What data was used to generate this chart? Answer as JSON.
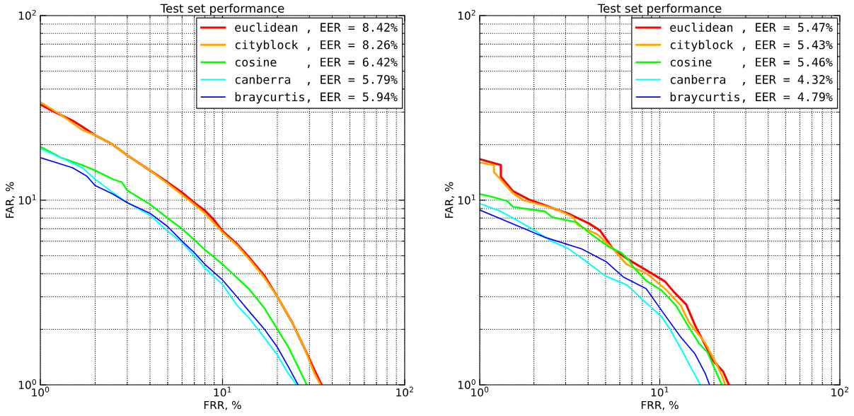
{
  "chart_data": [
    {
      "type": "line",
      "title": "Test set performance",
      "xlabel": "FRR, %",
      "ylabel": "FAR, %",
      "log": "xy",
      "grid": true,
      "legend": "top right",
      "xlim": [
        1,
        100
      ],
      "ylim": [
        1,
        100
      ],
      "xticks": [
        {
          "value": 1,
          "label": "10$^{0}$"
        },
        {
          "value": 10,
          "label": "10$^{1}$"
        },
        {
          "value": 100,
          "label": "10$^{2}$"
        }
      ],
      "yticks": [
        {
          "value": 1,
          "label": "10$^{0}$"
        },
        {
          "value": 10,
          "label": "10$^{1}$"
        },
        {
          "value": 100,
          "label": "10$^{2}$"
        }
      ],
      "series": [
        {
          "name": "euclidean , EER = 8.42%",
          "color": "#ff0000",
          "x": [
            1,
            1.2,
            1.5,
            1.7,
            2,
            2.5,
            3,
            4,
            5,
            6,
            7,
            8,
            9,
            10,
            12,
            14,
            17,
            20,
            24,
            28,
            32,
            35
          ],
          "values": [
            33,
            30,
            27,
            25,
            22.5,
            20,
            17.5,
            14.5,
            12.5,
            11,
            9.7,
            8.8,
            7.8,
            6.8,
            5.8,
            4.9,
            3.9,
            3.0,
            2.2,
            1.6,
            1.2,
            1.0
          ]
        },
        {
          "name": "cityblock , EER = 8.26%",
          "color": "#ffa500",
          "x": [
            1,
            1.3,
            1.7,
            2,
            2.5,
            3,
            4,
            5,
            6,
            7,
            8,
            10,
            12,
            14,
            17,
            20,
            24,
            28,
            32,
            34.5
          ],
          "values": [
            34,
            29,
            24,
            22.5,
            20,
            17.5,
            14.5,
            12.3,
            10.7,
            9.5,
            8.5,
            6.7,
            5.7,
            4.8,
            3.8,
            3.0,
            2.2,
            1.6,
            1.15,
            1.0
          ]
        },
        {
          "name": "cosine    , EER = 6.42%",
          "color": "#00ff00",
          "x": [
            1,
            1.3,
            1.7,
            2,
            2.5,
            2.8,
            3,
            4,
            5,
            6,
            7,
            8,
            10,
            12,
            14,
            17,
            20,
            23,
            26,
            29
          ],
          "values": [
            19.5,
            17,
            15.5,
            14.5,
            13,
            12.5,
            11.3,
            9.5,
            8,
            7,
            6.1,
            5.4,
            4.5,
            3.8,
            3.3,
            2.6,
            2.0,
            1.6,
            1.25,
            1.0
          ]
        },
        {
          "name": "canberra  , EER = 5.79%",
          "color": "#00ffff",
          "x": [
            1,
            1.3,
            1.7,
            2,
            2.5,
            3,
            4,
            5,
            6,
            7,
            8,
            10,
            12,
            14,
            17,
            20,
            23,
            25.5
          ],
          "values": [
            19,
            17,
            15,
            13,
            11,
            9.7,
            8.3,
            6.8,
            5.9,
            5,
            4.3,
            3.5,
            2.7,
            2.3,
            1.8,
            1.45,
            1.15,
            1.0
          ]
        },
        {
          "name": "braycurtis, EER = 5.94%",
          "color": "#0000ff",
          "x": [
            1,
            1.5,
            1.8,
            2,
            2.5,
            3,
            4,
            5,
            6,
            7,
            8,
            10,
            12,
            14,
            17,
            20,
            23,
            26
          ],
          "values": [
            17,
            15,
            13.5,
            12,
            10.8,
            9.7,
            8.5,
            7.2,
            6.0,
            5.2,
            4.5,
            3.7,
            3.0,
            2.5,
            2.0,
            1.6,
            1.25,
            1.0
          ]
        }
      ]
    },
    {
      "type": "line",
      "title": "Test set performance",
      "xlabel": "FRR, %",
      "ylabel": "FAR, %",
      "log": "xy",
      "grid": true,
      "legend": "top right",
      "xlim": [
        1,
        100
      ],
      "ylim": [
        1,
        100
      ],
      "xticks": [
        {
          "value": 1,
          "label": "10$^{0}$"
        },
        {
          "value": 10,
          "label": "10$^{1}$"
        },
        {
          "value": 100,
          "label": "10$^{2}$"
        }
      ],
      "yticks": [
        {
          "value": 1,
          "label": "10$^{0}$"
        },
        {
          "value": 10,
          "label": "10$^{1}$"
        },
        {
          "value": 100,
          "label": "10$^{2}$"
        }
      ],
      "series": [
        {
          "name": "euclidean , EER = 5.47%",
          "color": "#ff0000",
          "x": [
            1,
            1.31,
            1.31,
            1.53,
            1.87,
            3.16,
            4.03,
            4.66,
            5.5,
            6.7,
            8.8,
            10.7,
            12.0,
            14.0,
            15.7,
            17.9,
            19.8,
            22.5,
            24.2
          ],
          "values": [
            16.7,
            15.5,
            13.4,
            11.2,
            10.1,
            8.4,
            7.5,
            6.85,
            5.45,
            4.77,
            4.07,
            3.63,
            3.18,
            2.73,
            2.1,
            1.64,
            1.35,
            1.18,
            1.0
          ]
        },
        {
          "name": "cityblock , EER = 5.43%",
          "color": "#ffa500",
          "x": [
            1,
            1.2,
            1.2,
            1.53,
            1.75,
            2.63,
            3.3,
            3.5,
            4.53,
            5.5,
            6.5,
            7.1,
            8.5,
            10.9,
            13.1,
            14.5,
            17.9,
            20.2,
            22.1,
            23.1
          ],
          "values": [
            16.0,
            15.5,
            14.2,
            10.9,
            10.0,
            9.0,
            8.1,
            7.35,
            6.5,
            5.45,
            4.52,
            4.33,
            4.0,
            3.26,
            2.69,
            2.19,
            1.68,
            1.35,
            1.13,
            1.0
          ]
        },
        {
          "name": "cosine    , EER = 5.46%",
          "color": "#00ff00",
          "x": [
            1,
            1.19,
            1.42,
            1.53,
            2.3,
            2.52,
            3.45,
            4.03,
            4.66,
            5.2,
            6.1,
            6.7,
            7.1,
            8.5,
            10.2,
            12.3,
            14.3,
            16.5,
            18.4,
            20.5,
            22.1
          ],
          "values": [
            10.8,
            10.4,
            9.9,
            9.2,
            8.7,
            8.1,
            7.6,
            6.7,
            6.05,
            5.6,
            5.2,
            4.77,
            4.37,
            3.63,
            3.26,
            2.69,
            2.1,
            1.68,
            1.5,
            1.18,
            1.0
          ]
        },
        {
          "name": "canberra  , EER = 4.32%",
          "color": "#00ffff",
          "x": [
            1,
            1.31,
            1.57,
            1.95,
            2.47,
            3.07,
            3.78,
            4.96,
            6.6,
            8.0,
            10.2,
            11.5,
            13.4,
            15.1,
            16.8
          ],
          "values": [
            9.6,
            8.7,
            7.9,
            7.0,
            6.05,
            5.5,
            4.77,
            3.9,
            3.47,
            2.9,
            2.35,
            1.97,
            1.51,
            1.21,
            1.0
          ]
        },
        {
          "name": "braycurtis, EER = 4.79%",
          "color": "#0000ff",
          "x": [
            1,
            2.3,
            3.68,
            5.05,
            6.3,
            8.4,
            10.5,
            13.1,
            15.7,
            17.9,
            18.9
          ],
          "values": [
            8.85,
            6.3,
            5.45,
            4.64,
            3.83,
            3.32,
            2.44,
            1.81,
            1.47,
            1.15,
            1.0
          ]
        }
      ]
    }
  ]
}
